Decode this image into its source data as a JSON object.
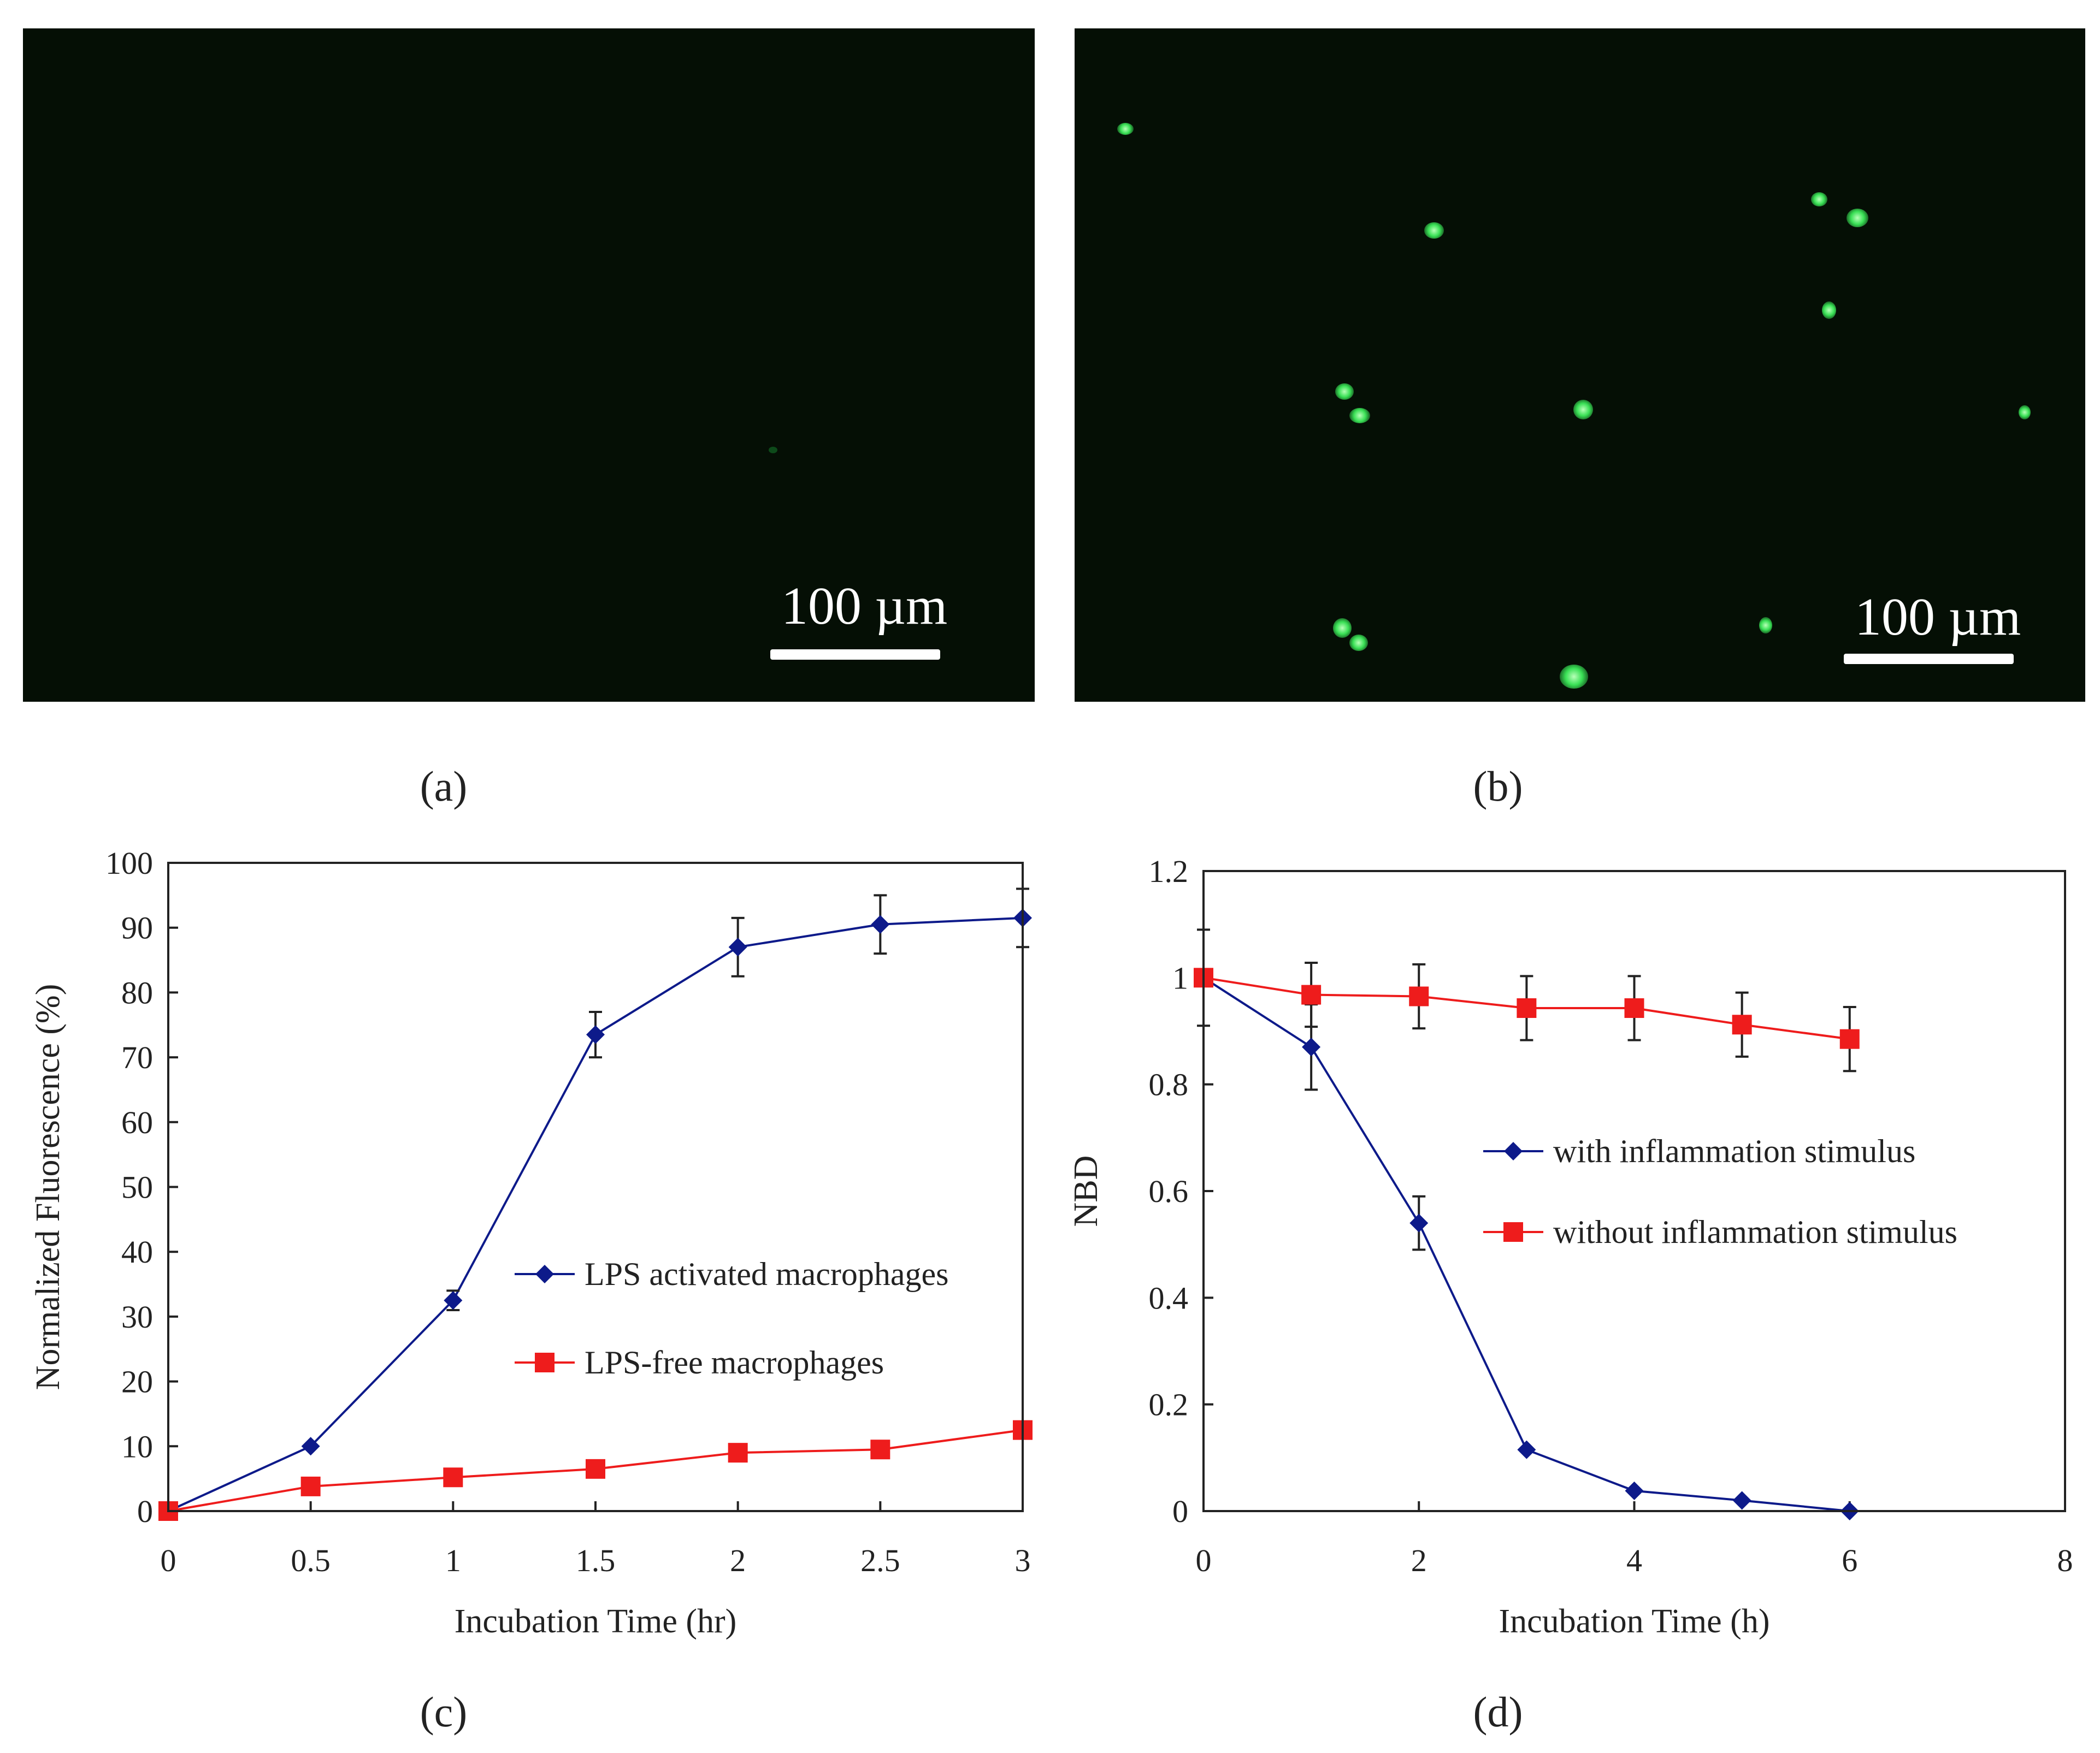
{
  "panel_labels": {
    "a": "(a)",
    "b": "(b)",
    "c": "(c)",
    "d": "(d)"
  },
  "micrographs": {
    "a": {
      "scale_bar": "100 µm",
      "background": "#050f05"
    },
    "b": {
      "scale_bar": "100 µm",
      "background": "#050f05",
      "cell_color": "#39e055"
    }
  },
  "colors": {
    "blue": "#0d1a8a",
    "red": "#ee1c1c",
    "axis": "#222222"
  },
  "chart_data": [
    {
      "id": "c",
      "type": "line",
      "title": "",
      "xlabel": "Incubation Time (hr)",
      "ylabel": "Normalized Fluorescence (%)",
      "xlim": [
        0,
        3
      ],
      "ylim": [
        0,
        100
      ],
      "xticks": [
        0,
        0.5,
        1,
        1.5,
        2,
        2.5,
        3
      ],
      "xtick_labels": [
        "0",
        "0.5",
        "1",
        "1.5",
        "2",
        "2.5",
        "3"
      ],
      "yticks": [
        0,
        10,
        20,
        30,
        40,
        50,
        60,
        70,
        80,
        90,
        100
      ],
      "ytick_labels": [
        "0",
        "10",
        "20",
        "30",
        "40",
        "50",
        "60",
        "70",
        "80",
        "90",
        "100"
      ],
      "legend_position": "center-right",
      "series": [
        {
          "name": "LPS activated macrophages",
          "color": "#0d1a8a",
          "marker": "diamond",
          "x": [
            0,
            0.5,
            1,
            1.5,
            2,
            2.5,
            3
          ],
          "y": [
            0,
            10,
            32.5,
            73.5,
            87,
            90.5,
            91.5
          ],
          "err": [
            0,
            0,
            1.5,
            3.5,
            4.5,
            4.5,
            4.5
          ]
        },
        {
          "name": "LPS-free macrophages",
          "color": "#ee1c1c",
          "marker": "square",
          "x": [
            0,
            0.5,
            1,
            1.5,
            2,
            2.5,
            3
          ],
          "y": [
            0,
            3.8,
            5.2,
            6.5,
            9,
            9.5,
            12.5
          ],
          "err": [
            0,
            0,
            0,
            0,
            0,
            0,
            0
          ]
        }
      ]
    },
    {
      "id": "d",
      "type": "line",
      "title": "",
      "xlabel": "Incubation Time (h)",
      "ylabel": "NBD",
      "xlim": [
        0,
        8
      ],
      "ylim": [
        0,
        1.2
      ],
      "xticks": [
        0,
        2,
        4,
        6,
        8
      ],
      "xtick_labels": [
        "0",
        "2",
        "4",
        "6",
        "8"
      ],
      "yticks": [
        0,
        0.2,
        0.4,
        0.6,
        0.8,
        1,
        1.2
      ],
      "ytick_labels": [
        "0",
        "0.2",
        "0.4",
        "0.6",
        "0.8",
        "1",
        "1.2"
      ],
      "legend_position": "center-right",
      "series": [
        {
          "name": "with inflammation stimulus",
          "color": "#0d1a8a",
          "marker": "diamond",
          "x": [
            0,
            1,
            2,
            3,
            4,
            5,
            6
          ],
          "y": [
            1.0,
            0.87,
            0.54,
            0.115,
            0.038,
            0.02,
            0.0
          ],
          "err": [
            0.09,
            0.08,
            0.05,
            0,
            0,
            0,
            0
          ]
        },
        {
          "name": "without inflammation stimulus",
          "color": "#ee1c1c",
          "marker": "square",
          "x": [
            0,
            1,
            2,
            3,
            4,
            5,
            6
          ],
          "y": [
            1.0,
            0.968,
            0.965,
            0.943,
            0.943,
            0.912,
            0.885
          ],
          "err": [
            0,
            0.06,
            0.06,
            0.06,
            0.06,
            0.06,
            0.06
          ]
        }
      ]
    }
  ]
}
